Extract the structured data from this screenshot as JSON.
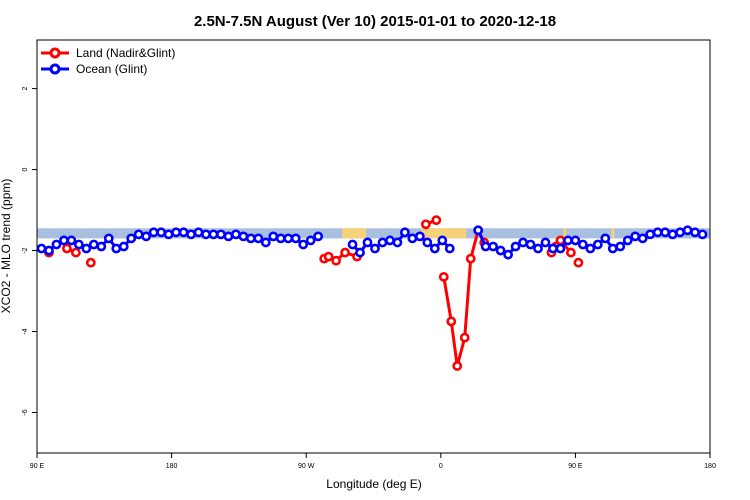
{
  "chart_data": {
    "type": "line",
    "title": "2.5N-7.5N August (Ver 10)   2015-01-01 to 2020-12-18",
    "xlabel": "Longitude (deg E)",
    "ylabel": "XCO2 - MLO trend (ppm)",
    "x_tick_labels": [
      "90 E",
      "180",
      "90 W",
      "0",
      "90 E",
      "180"
    ],
    "y_tick_labels": [
      "2",
      "0",
      "-2",
      "-4",
      "-6"
    ],
    "y_ticks": [
      2,
      0,
      -2,
      -4,
      -6
    ],
    "xlim": [
      90,
      540
    ],
    "ylim": [
      -7,
      3.2
    ],
    "legend_position": "top-left",
    "band": {
      "y_range": [
        -1.7,
        -1.45
      ],
      "ocean_color": "#a8bfe0",
      "land_color": "#f5d27a"
    },
    "land_spans": [
      [
        294,
        310
      ],
      [
        347,
        377
      ],
      [
        442,
        444
      ],
      [
        474,
        476
      ]
    ],
    "series": [
      {
        "name": "Land (Nadir&Glint)",
        "color": "#ff0000",
        "segments": [
          [
            [
              98,
              -2.05
            ]
          ],
          [
            [
              110,
              -1.95
            ],
            [
              116,
              -2.05
            ]
          ],
          [
            [
              126,
              -2.3
            ]
          ],
          [
            [
              282,
              -2.2
            ],
            [
              285,
              -2.15
            ],
            [
              290,
              -2.25
            ],
            [
              296,
              -2.05
            ],
            [
              304,
              -2.15
            ]
          ],
          [
            [
              350,
              -1.35
            ],
            [
              357,
              -1.25
            ]
          ],
          [
            [
              362,
              -2.65
            ],
            [
              367,
              -3.75
            ],
            [
              371,
              -4.85
            ],
            [
              376,
              -4.15
            ],
            [
              380,
              -2.2
            ],
            [
              385,
              -1.5
            ],
            [
              389,
              -1.8
            ]
          ],
          [
            [
              434,
              -2.05
            ],
            [
              437,
              -1.9
            ],
            [
              440,
              -1.75
            ],
            [
              447,
              -2.05
            ]
          ],
          [
            [
              452,
              -2.3
            ]
          ]
        ]
      },
      {
        "name": "Ocean (Glint)",
        "color": "#0000ff",
        "segments": [
          [
            [
              93,
              -1.95
            ],
            [
              98,
              -2.0
            ],
            [
              103,
              -1.85
            ],
            [
              108,
              -1.75
            ],
            [
              113,
              -1.75
            ],
            [
              118,
              -1.85
            ],
            [
              123,
              -1.95
            ],
            [
              128,
              -1.85
            ],
            [
              133,
              -1.9
            ],
            [
              138,
              -1.7
            ],
            [
              143,
              -1.95
            ],
            [
              148,
              -1.9
            ],
            [
              153,
              -1.7
            ],
            [
              158,
              -1.6
            ],
            [
              163,
              -1.65
            ],
            [
              168,
              -1.55
            ],
            [
              173,
              -1.55
            ],
            [
              178,
              -1.6
            ],
            [
              183,
              -1.55
            ],
            [
              188,
              -1.55
            ],
            [
              193,
              -1.6
            ],
            [
              198,
              -1.55
            ],
            [
              203,
              -1.6
            ],
            [
              208,
              -1.6
            ],
            [
              213,
              -1.6
            ],
            [
              218,
              -1.65
            ],
            [
              223,
              -1.6
            ],
            [
              228,
              -1.65
            ],
            [
              233,
              -1.7
            ],
            [
              238,
              -1.7
            ],
            [
              243,
              -1.8
            ],
            [
              248,
              -1.65
            ],
            [
              253,
              -1.7
            ],
            [
              258,
              -1.7
            ],
            [
              263,
              -1.7
            ],
            [
              268,
              -1.85
            ],
            [
              273,
              -1.75
            ],
            [
              278,
              -1.65
            ]
          ],
          [
            [
              301,
              -1.85
            ],
            [
              306,
              -2.05
            ],
            [
              311,
              -1.8
            ],
            [
              316,
              -1.95
            ],
            [
              321,
              -1.8
            ],
            [
              326,
              -1.75
            ],
            [
              331,
              -1.8
            ],
            [
              336,
              -1.55
            ],
            [
              341,
              -1.7
            ],
            [
              346,
              -1.65
            ],
            [
              351,
              -1.8
            ],
            [
              356,
              -1.95
            ],
            [
              361,
              -1.75
            ],
            [
              366,
              -1.95
            ]
          ],
          [
            [
              385,
              -1.5
            ],
            [
              390,
              -1.9
            ],
            [
              395,
              -1.9
            ],
            [
              400,
              -2.0
            ],
            [
              405,
              -2.1
            ],
            [
              410,
              -1.9
            ],
            [
              415,
              -1.8
            ],
            [
              420,
              -1.85
            ],
            [
              425,
              -1.95
            ],
            [
              430,
              -1.8
            ],
            [
              435,
              -1.95
            ],
            [
              440,
              -1.95
            ],
            [
              445,
              -1.75
            ],
            [
              450,
              -1.75
            ],
            [
              455,
              -1.85
            ],
            [
              460,
              -1.95
            ],
            [
              465,
              -1.85
            ],
            [
              470,
              -1.7
            ],
            [
              475,
              -1.95
            ],
            [
              480,
              -1.9
            ],
            [
              485,
              -1.75
            ],
            [
              490,
              -1.65
            ],
            [
              495,
              -1.7
            ],
            [
              500,
              -1.6
            ],
            [
              505,
              -1.55
            ],
            [
              510,
              -1.55
            ],
            [
              515,
              -1.6
            ],
            [
              520,
              -1.55
            ],
            [
              525,
              -1.5
            ],
            [
              530,
              -1.55
            ],
            [
              535,
              -1.6
            ]
          ]
        ]
      }
    ]
  }
}
